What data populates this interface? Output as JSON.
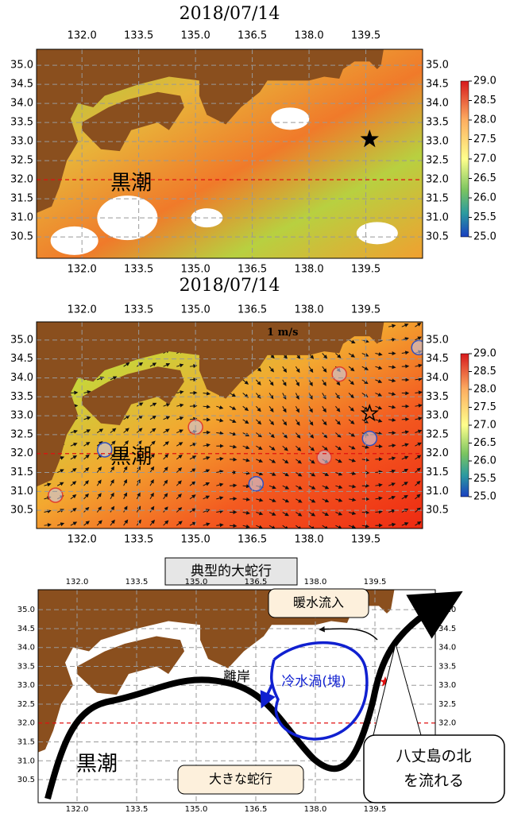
{
  "panels": [
    {
      "title": "2018/07/14",
      "xticks": [
        "132.0",
        "133.5",
        "135.0",
        "136.5",
        "138.0",
        "139.5"
      ],
      "yticks": [
        "35.0",
        "34.5",
        "34.0",
        "33.5",
        "33.0",
        "32.5",
        "32.0",
        "31.5",
        "31.0",
        "30.5"
      ],
      "colorbar_ticks": [
        "29.0",
        "28.5",
        "28.0",
        "27.5",
        "27.0",
        "26.5",
        "26.0",
        "25.5",
        "25.0"
      ],
      "label": "黒潮"
    },
    {
      "title": "2018/07/14",
      "xticks": [
        "132.0",
        "133.5",
        "135.0",
        "136.5",
        "138.0",
        "139.5"
      ],
      "yticks": [
        "35.0",
        "34.5",
        "34.0",
        "33.5",
        "33.0",
        "32.5",
        "32.0",
        "31.5",
        "31.0",
        "30.5"
      ],
      "colorbar_ticks": [
        "29.0",
        "28.5",
        "28.0",
        "27.5",
        "27.0",
        "26.5",
        "26.0",
        "25.5",
        "25.0"
      ],
      "label": "黒潮",
      "scale_label": "1 m/s"
    },
    {
      "caption": "典型的大蛇行",
      "xticks": [
        "132.0",
        "133.5",
        "135.0",
        "136.5",
        "138.0",
        "139.5"
      ],
      "yticks": [
        "35.0",
        "34.5",
        "34.0",
        "33.5",
        "33.0",
        "32.5",
        "32.0",
        "31.5",
        "31.0",
        "30.5"
      ],
      "label": "黒潮",
      "annotations": {
        "warm_inflow": "暖水流入",
        "cold_eddy": "冷水渦(塊)",
        "offshore": "離岸",
        "large_meander": "大きな蛇行",
        "hachijo_1": "八丈島の北",
        "hachijo_2": "を流れる"
      }
    }
  ]
}
